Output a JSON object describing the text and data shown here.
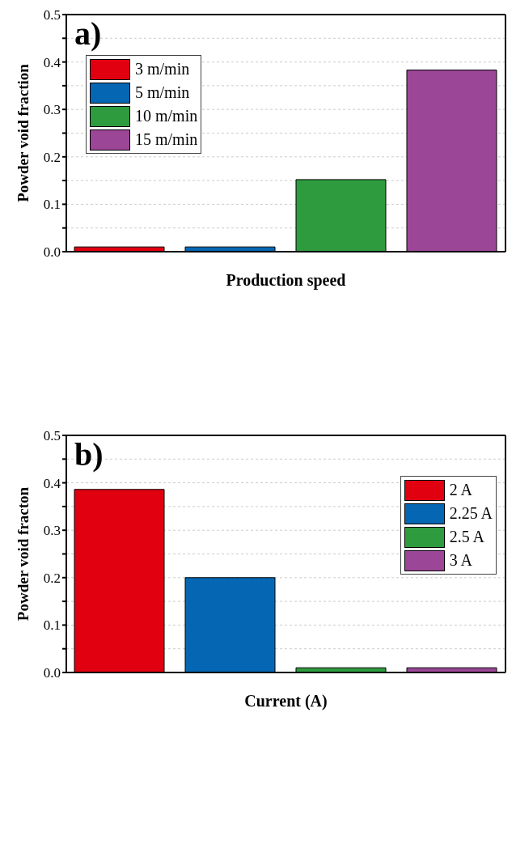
{
  "chart_data": [
    {
      "type": "bar",
      "annotations": [
        "a)"
      ],
      "ylabel": "Powder void fraction",
      "xlabel": "Production speed",
      "categories": [
        null
      ],
      "series": [
        {
          "name": "3 m/min",
          "color": "#e0000f",
          "values": [
            0.01
          ]
        },
        {
          "name": "5 m/min",
          "color": "#0567b3",
          "values": [
            0.01
          ]
        },
        {
          "name": "10 m/min",
          "color": "#2f9b3f",
          "values": [
            0.152
          ]
        },
        {
          "name": "15 m/min",
          "color": "#9c4697",
          "values": [
            0.383
          ]
        }
      ],
      "ylim": [
        0,
        0.5
      ],
      "yticks": [
        {
          "value": 0,
          "label": "0.0"
        },
        {
          "value": 0.05,
          "label": null
        },
        0.1,
        {
          "value": 0.15,
          "label": null
        },
        0.2,
        {
          "value": 0.25,
          "label": null
        },
        0.3,
        {
          "value": 0.35,
          "label": null
        },
        0.4,
        {
          "value": 0.45,
          "label": null
        },
        0.5
      ],
      "grid": "y",
      "legend": "top left"
    },
    {
      "type": "bar",
      "annotations": [
        "b)"
      ],
      "ylabel": "Powder void fracton",
      "xlabel": "Current (A)",
      "categories": [
        null
      ],
      "series": [
        {
          "name": "2 A",
          "color": "#e0000f",
          "values": [
            0.386
          ]
        },
        {
          "name": "2.25 A",
          "color": "#0567b3",
          "values": [
            0.2
          ]
        },
        {
          "name": "2.5 A",
          "color": "#2f9b3f",
          "values": [
            0.01
          ]
        },
        {
          "name": "3 A",
          "color": "#9c4697",
          "values": [
            0.01
          ]
        }
      ],
      "ylim": [
        0,
        0.5
      ],
      "yticks": [
        {
          "value": 0,
          "label": "0.0"
        },
        {
          "value": 0.05,
          "label": null
        },
        0.1,
        {
          "value": 0.15,
          "label": null
        },
        0.2,
        {
          "value": 0.25,
          "label": null
        },
        0.3,
        {
          "value": 0.35,
          "label": null
        },
        0.4,
        {
          "value": 0.45,
          "label": null
        },
        0.5
      ],
      "grid": "y",
      "legend": "top right"
    }
  ]
}
